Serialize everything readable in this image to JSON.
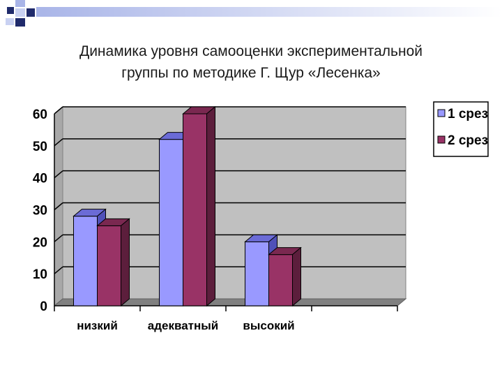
{
  "slide": {
    "title_line1": "Динамика уровня самооценки экспериментальной",
    "title_line2": "группы по методике Г. Щур «Лесенка»"
  },
  "colors": {
    "series1_front": "#9999FF",
    "series1_top": "#6B6BD6",
    "series1_side": "#5050B8",
    "series2_front": "#993366",
    "series2_top": "#7A2850",
    "series2_side": "#5C1E3C",
    "wall": "#C0C0C0",
    "floor": "#808080",
    "deco_dark": "#1F2A6B",
    "deco_light": "#A9B5E8"
  },
  "chart_data": {
    "type": "bar",
    "title": "",
    "xlabel": "",
    "ylabel": "",
    "categories": [
      "низкий",
      "адекватный",
      "высокий"
    ],
    "series": [
      {
        "name": "1 срез",
        "values": [
          28,
          52,
          20
        ]
      },
      {
        "name": "2 срез",
        "values": [
          25,
          60,
          16
        ]
      }
    ],
    "ylim": [
      0,
      60
    ],
    "yticks": [
      "0",
      "10",
      "20",
      "30",
      "40",
      "50",
      "60"
    ],
    "grid": true,
    "legend_position": "right",
    "style": "3d-column"
  }
}
